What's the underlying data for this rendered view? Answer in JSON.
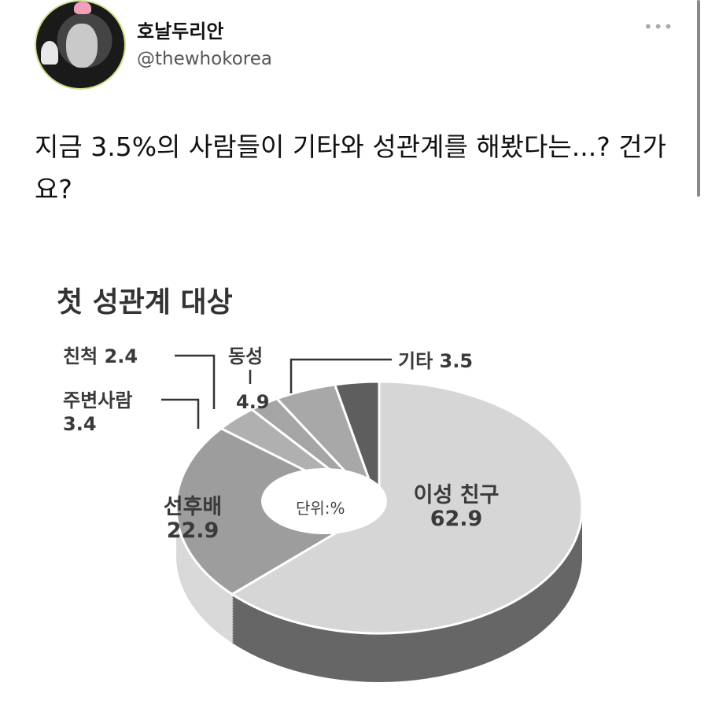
{
  "post": {
    "display_name": "호날두리안",
    "handle": "@thewhokorea",
    "more_icon": "more-horizontal-icon",
    "text": "지금 3.5%의 사람들이 기타와 성관계를 해봤다는...? 건가요?"
  },
  "chart_data": {
    "type": "pie",
    "variant": "3d-donut",
    "title": "첫 성관계 대상",
    "unit_label": "단위:%",
    "slices": [
      {
        "label": "이성 친구",
        "value": 62.9,
        "color": "#d6d6d6",
        "side_color": "#666666"
      },
      {
        "label": "선후배",
        "value": 22.9,
        "color": "#9d9d9d",
        "side_color": "#d9d9d9"
      },
      {
        "label": "주변사람",
        "value": 3.4,
        "color": "#b0b0b0",
        "side_color": "#d0d0d0"
      },
      {
        "label": "친척",
        "value": 2.4,
        "color": "#a5a5a5",
        "side_color": "#c8c8c8"
      },
      {
        "label": "동성",
        "value": 4.9,
        "color": "#a8a8a8",
        "side_color": "#c0c0c0"
      },
      {
        "label": "기타",
        "value": 3.5,
        "color": "#5e5e5e",
        "side_color": "#555555"
      }
    ],
    "display_labels": {
      "이성 친구": "62.9",
      "선후배": "22.9",
      "주변사람": "3.4",
      "친척": "2.4",
      "동성": "4.9",
      "기타": "3.5"
    }
  }
}
